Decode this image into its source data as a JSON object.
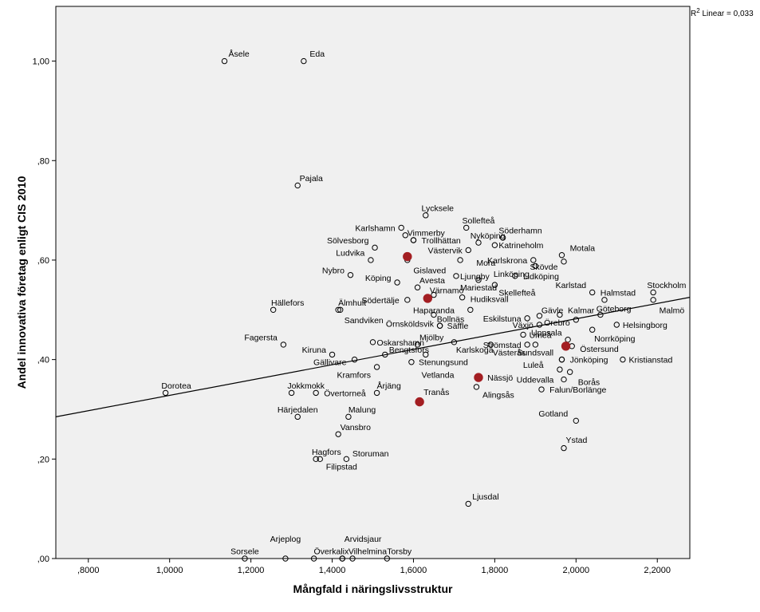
{
  "chart_data": {
    "type": "scatter",
    "xlabel": "Mångfald i näringslivsstruktur",
    "ylabel": "Andel innovativa företag enligt CIS 2010",
    "xlim": [
      0.72,
      2.28
    ],
    "ylim": [
      0.0,
      1.11
    ],
    "x_ticks": [
      0.8,
      1.0,
      1.2,
      1.4,
      1.6,
      1.8,
      2.0,
      2.2
    ],
    "x_tick_labels": [
      ",8000",
      "1,0000",
      "1,2000",
      "1,4000",
      "1,6000",
      "1,8000",
      "2,0000",
      "2,2000"
    ],
    "y_ticks": [
      0.0,
      0.2,
      0.4,
      0.6,
      0.8,
      1.0
    ],
    "y_tick_labels": [
      ",00",
      ",20",
      ",40",
      ",60",
      ",80",
      "1,00"
    ],
    "fit_line": {
      "label_prefix": "R",
      "label_sup": "2",
      "label_suffix": " Linear = 0,033",
      "intercept": 0.174,
      "slope": 0.154
    },
    "colors": {
      "plot_bg": "#f0f0f0",
      "marker_edge": "#000000",
      "highlight": "#a31e22",
      "fit_line": "#000000"
    },
    "points": [
      {
        "name": "Åsele",
        "x": 1.135,
        "y": 1.0,
        "lx": 0.0,
        "ly": 0.015,
        "anchor": "start"
      },
      {
        "name": "Eda",
        "x": 1.33,
        "y": 1.0,
        "lx": 0.005,
        "ly": 0.015,
        "anchor": "start"
      },
      {
        "name": "Pajala",
        "x": 1.315,
        "y": 0.75,
        "lx": -0.005,
        "ly": 0.015,
        "anchor": "start"
      },
      {
        "name": "Lycksele",
        "x": 1.63,
        "y": 0.69,
        "lx": -0.02,
        "ly": 0.015,
        "anchor": "start"
      },
      {
        "name": "Sollefteå",
        "x": 1.73,
        "y": 0.665,
        "lx": -0.02,
        "ly": 0.015,
        "anchor": "start"
      },
      {
        "name": "Karlshamn",
        "x": 1.57,
        "y": 0.665,
        "lx": -0.005,
        "ly": 0.0,
        "anchor": "end"
      },
      {
        "name": "Vimmerby",
        "x": 1.58,
        "y": 0.65,
        "lx": -0.005,
        "ly": 0.005,
        "anchor": "start"
      },
      {
        "name": "Söderhamn",
        "x": 1.82,
        "y": 0.645,
        "lx": -0.02,
        "ly": 0.015,
        "anchor": "start"
      },
      {
        "name": "Trollhättan",
        "x": 1.6,
        "y": 0.64,
        "lx": 0.01,
        "ly": 0.0,
        "anchor": "start"
      },
      {
        "name": "Nyköping",
        "x": 1.76,
        "y": 0.635,
        "lx": -0.03,
        "ly": 0.015,
        "anchor": "start"
      },
      {
        "name": "Sölvesborg",
        "x": 1.505,
        "y": 0.625,
        "lx": -0.005,
        "ly": 0.015,
        "anchor": "end"
      },
      {
        "name": "Katrineholm",
        "x": 1.8,
        "y": 0.63,
        "lx": 0.0,
        "ly": 0.0,
        "anchor": "start"
      },
      {
        "name": "Motala",
        "x": 1.965,
        "y": 0.61,
        "lx": 0.01,
        "ly": 0.015,
        "anchor": "start"
      },
      {
        "name": "Västervik",
        "x": 1.735,
        "y": 0.62,
        "lx": -0.005,
        "ly": 0.0,
        "anchor": "end"
      },
      {
        "name": "Ludvika",
        "x": 1.495,
        "y": 0.6,
        "lx": -0.005,
        "ly": 0.015,
        "anchor": "end"
      },
      {
        "name": "Karlskrona",
        "x": 1.895,
        "y": 0.6,
        "lx": -0.005,
        "ly": 0.0,
        "anchor": "end"
      },
      {
        "name": "Mora",
        "x": 1.715,
        "y": 0.6,
        "lx": 0.03,
        "ly": -0.005,
        "anchor": "start"
      },
      {
        "name": "Skövde",
        "x": 1.97,
        "y": 0.597,
        "lx": -0.005,
        "ly": -0.01,
        "anchor": "end"
      },
      {
        "name": "Gislaved",
        "x": 1.585,
        "y": 0.6,
        "lx": 0.005,
        "ly": -0.02,
        "anchor": "start"
      },
      {
        "name": "Linköping",
        "x": 1.9,
        "y": 0.588,
        "lx": -0.005,
        "ly": -0.015,
        "anchor": "end"
      },
      {
        "name": "Nybro",
        "x": 1.445,
        "y": 0.57,
        "lx": -0.005,
        "ly": 0.01,
        "anchor": "end"
      },
      {
        "name": "Ljungby",
        "x": 1.705,
        "y": 0.568,
        "lx": 0.0,
        "ly": 0.0,
        "anchor": "start"
      },
      {
        "name": "Lidköping",
        "x": 1.85,
        "y": 0.568,
        "lx": 0.01,
        "ly": 0.0,
        "anchor": "start"
      },
      {
        "name": "Köping",
        "x": 1.56,
        "y": 0.555,
        "lx": -0.005,
        "ly": 0.01,
        "anchor": "end"
      },
      {
        "name": "Avesta",
        "x": 1.61,
        "y": 0.545,
        "lx": -0.005,
        "ly": 0.015,
        "anchor": "start"
      },
      {
        "name": "Mariestad",
        "x": 1.76,
        "y": 0.56,
        "lx": 0.0,
        "ly": -0.015,
        "anchor": "middle"
      },
      {
        "name": "Skellefteå",
        "x": 1.8,
        "y": 0.55,
        "lx": 0.0,
        "ly": -0.015,
        "anchor": "start"
      },
      {
        "name": "Värnamo",
        "x": 1.65,
        "y": 0.53,
        "lx": -0.02,
        "ly": 0.01,
        "anchor": "start"
      },
      {
        "name": "Karlstad",
        "x": 2.04,
        "y": 0.535,
        "lx": -0.005,
        "ly": 0.015,
        "anchor": "end"
      },
      {
        "name": "Halmstad",
        "x": 2.07,
        "y": 0.52,
        "lx": -0.02,
        "ly": 0.015,
        "anchor": "start"
      },
      {
        "name": "Stockholm",
        "x": 2.19,
        "y": 0.535,
        "lx": -0.025,
        "ly": 0.015,
        "anchor": "start"
      },
      {
        "name": "Södertälje",
        "x": 1.585,
        "y": 0.52,
        "lx": -0.01,
        "ly": 0.0,
        "anchor": "end"
      },
      {
        "name": "Hudiksvall",
        "x": 1.72,
        "y": 0.525,
        "lx": 0.01,
        "ly": -0.003,
        "anchor": "start"
      },
      {
        "name": "Hällefors",
        "x": 1.255,
        "y": 0.5,
        "lx": -0.015,
        "ly": 0.015,
        "anchor": "start"
      },
      {
        "name": "Älmhult",
        "x": 1.415,
        "y": 0.5,
        "lx": -0.01,
        "ly": 0.015,
        "anchor": "start"
      },
      {
        "name": "Haparanda",
        "x": 1.65,
        "y": 0.49,
        "lx": 0.0,
        "ly": 0.01,
        "anchor": "middle"
      },
      {
        "name": "Kalmar",
        "x": 1.96,
        "y": 0.49,
        "lx": 0.01,
        "ly": 0.01,
        "anchor": "start"
      },
      {
        "name": "Göteborg",
        "x": 2.06,
        "y": 0.49,
        "lx": -0.02,
        "ly": 0.013,
        "anchor": "start"
      },
      {
        "name": "Malmö",
        "x": 2.19,
        "y": 0.52,
        "lx": 0.005,
        "ly": -0.02,
        "anchor": "start"
      },
      {
        "name": "Gävle",
        "x": 1.91,
        "y": 0.488,
        "lx": -0.005,
        "ly": 0.012,
        "anchor": "start"
      },
      {
        "name": "Eskilstuna",
        "x": 1.88,
        "y": 0.483,
        "lx": -0.005,
        "ly": 0.0,
        "anchor": "end"
      },
      {
        "name": "Sandviken",
        "x": 1.42,
        "y": 0.5,
        "lx": 0.0,
        "ly": -0.02,
        "anchor": "start"
      },
      {
        "name": "Bollnäs",
        "x": 1.74,
        "y": 0.5,
        "lx": -0.005,
        "ly": -0.018,
        "anchor": "end"
      },
      {
        "name": "Örebro",
        "x": 2.0,
        "y": 0.48,
        "lx": -0.005,
        "ly": -0.005,
        "anchor": "end"
      },
      {
        "name": "Helsingborg",
        "x": 2.1,
        "y": 0.47,
        "lx": 0.005,
        "ly": 0.0,
        "anchor": "start"
      },
      {
        "name": "Örnsköldsvik",
        "x": 1.665,
        "y": 0.468,
        "lx": -0.005,
        "ly": 0.004,
        "anchor": "end"
      },
      {
        "name": "Säffle",
        "x": 1.665,
        "y": 0.468,
        "lx": 0.008,
        "ly": 0.0,
        "anchor": "start"
      },
      {
        "name": "Växjö",
        "x": 1.91,
        "y": 0.47,
        "lx": -0.005,
        "ly": 0.0,
        "anchor": "end"
      },
      {
        "name": "Umeå",
        "x": 1.87,
        "y": 0.45,
        "lx": 0.005,
        "ly": 0.0,
        "anchor": "start"
      },
      {
        "name": "Uppsala",
        "x": 1.98,
        "y": 0.44,
        "lx": -0.005,
        "ly": 0.015,
        "anchor": "end"
      },
      {
        "name": "Norrköping",
        "x": 2.04,
        "y": 0.46,
        "lx": -0.005,
        "ly": -0.017,
        "anchor": "start"
      },
      {
        "name": "Fagersta",
        "x": 1.28,
        "y": 0.43,
        "lx": -0.005,
        "ly": 0.015,
        "anchor": "end"
      },
      {
        "name": "Oskarshamn",
        "x": 1.5,
        "y": 0.435,
        "lx": 0.0,
        "ly": 0.0,
        "anchor": "start"
      },
      {
        "name": "Mjölby",
        "x": 1.61,
        "y": 0.43,
        "lx": -0.005,
        "ly": 0.015,
        "anchor": "start"
      },
      {
        "name": "Strömstad",
        "x": 1.88,
        "y": 0.43,
        "lx": -0.005,
        "ly": 0.0,
        "anchor": "end"
      },
      {
        "name": "Östersund",
        "x": 1.99,
        "y": 0.427,
        "lx": 0.01,
        "ly": -0.005,
        "anchor": "start"
      },
      {
        "name": "Kiruna",
        "x": 1.4,
        "y": 0.41,
        "lx": -0.005,
        "ly": 0.01,
        "anchor": "end"
      },
      {
        "name": "Bengtsfors",
        "x": 1.53,
        "y": 0.41,
        "lx": 0.0,
        "ly": 0.01,
        "anchor": "start"
      },
      {
        "name": "Karlskoga",
        "x": 1.7,
        "y": 0.435,
        "lx": -0.005,
        "ly": -0.015,
        "anchor": "start"
      },
      {
        "name": "Västerås",
        "x": 1.79,
        "y": 0.43,
        "lx": -0.005,
        "ly": -0.015,
        "anchor": "start"
      },
      {
        "name": "Sundsvall",
        "x": 1.9,
        "y": 0.43,
        "lx": 0.0,
        "ly": -0.015,
        "anchor": "middle"
      },
      {
        "name": "Jönköping",
        "x": 1.965,
        "y": 0.4,
        "lx": 0.01,
        "ly": 0.0,
        "anchor": "start"
      },
      {
        "name": "Kristianstad",
        "x": 2.115,
        "y": 0.4,
        "lx": 0.005,
        "ly": 0.0,
        "anchor": "start"
      },
      {
        "name": "Gällivare",
        "x": 1.455,
        "y": 0.4,
        "lx": -0.01,
        "ly": -0.005,
        "anchor": "end"
      },
      {
        "name": "Stenungsund",
        "x": 1.595,
        "y": 0.395,
        "lx": 0.008,
        "ly": 0.0,
        "anchor": "start"
      },
      {
        "name": "Kramfors",
        "x": 1.51,
        "y": 0.385,
        "lx": -0.005,
        "ly": -0.015,
        "anchor": "end"
      },
      {
        "name": "Vetlanda",
        "x": 1.63,
        "y": 0.41,
        "lx": -0.02,
        "ly": -0.04,
        "anchor": "start"
      },
      {
        "name": "Luleå",
        "x": 1.96,
        "y": 0.38,
        "lx": -0.03,
        "ly": 0.01,
        "anchor": "end"
      },
      {
        "name": "Borås",
        "x": 1.985,
        "y": 0.375,
        "lx": 0.01,
        "ly": -0.02,
        "anchor": "start"
      },
      {
        "name": "Uddevalla",
        "x": 1.97,
        "y": 0.36,
        "lx": -0.015,
        "ly": 0.0,
        "anchor": "end"
      },
      {
        "name": "Dorotea",
        "x": 0.99,
        "y": 0.333,
        "lx": -0.02,
        "ly": 0.015,
        "anchor": "start"
      },
      {
        "name": "Jokkmokk",
        "x": 1.3,
        "y": 0.333,
        "lx": -0.02,
        "ly": 0.015,
        "anchor": "start"
      },
      {
        "name": "Övertorneå",
        "x": 1.36,
        "y": 0.333,
        "lx": 0.01,
        "ly": 0.0,
        "anchor": "start"
      },
      {
        "name": "Årjäng",
        "x": 1.51,
        "y": 0.333,
        "lx": -0.01,
        "ly": 0.015,
        "anchor": "start"
      },
      {
        "name": "Alingsås",
        "x": 1.755,
        "y": 0.345,
        "lx": 0.005,
        "ly": -0.015,
        "anchor": "start"
      },
      {
        "name": "Falun/Borlänge",
        "x": 1.915,
        "y": 0.34,
        "lx": 0.01,
        "ly": 0.0,
        "anchor": "start"
      },
      {
        "name": "Härjedalen",
        "x": 1.315,
        "y": 0.285,
        "lx": 0.0,
        "ly": 0.015,
        "anchor": "middle"
      },
      {
        "name": "Malung",
        "x": 1.44,
        "y": 0.285,
        "lx": -0.01,
        "ly": 0.015,
        "anchor": "start"
      },
      {
        "name": "Vansbro",
        "x": 1.415,
        "y": 0.25,
        "lx": -0.005,
        "ly": 0.015,
        "anchor": "start"
      },
      {
        "name": "Gotland",
        "x": 2.0,
        "y": 0.277,
        "lx": -0.01,
        "ly": 0.015,
        "anchor": "end"
      },
      {
        "name": "Ystad",
        "x": 1.97,
        "y": 0.222,
        "lx": -0.005,
        "ly": 0.017,
        "anchor": "start"
      },
      {
        "name": "Hagfors",
        "x": 1.36,
        "y": 0.2,
        "lx": -0.02,
        "ly": 0.015,
        "anchor": "start"
      },
      {
        "name": "Storuman",
        "x": 1.435,
        "y": 0.2,
        "lx": 0.005,
        "ly": 0.012,
        "anchor": "start"
      },
      {
        "name": "Filipstad",
        "x": 1.37,
        "y": 0.2,
        "lx": 0.005,
        "ly": -0.015,
        "anchor": "start"
      },
      {
        "name": "Ljusdal",
        "x": 1.735,
        "y": 0.11,
        "lx": 0.0,
        "ly": 0.015,
        "anchor": "start"
      },
      {
        "name": "Arjeplog",
        "x": 1.285,
        "y": 0.0,
        "lx": 0.0,
        "ly": 0.04,
        "anchor": "middle"
      },
      {
        "name": "Arvidsjaur",
        "x": 1.425,
        "y": 0.0,
        "lx": -0.005,
        "ly": 0.04,
        "anchor": "start"
      },
      {
        "name": "Sorsele",
        "x": 1.185,
        "y": 0.0,
        "lx": 0.0,
        "ly": 0.015,
        "anchor": "middle"
      },
      {
        "name": "Överkalix",
        "x": 1.355,
        "y": 0.0,
        "lx": -0.01,
        "ly": 0.015,
        "anchor": "start"
      },
      {
        "name": "Vilhelmina",
        "x": 1.425,
        "y": 0.0,
        "lx": 0.005,
        "ly": 0.015,
        "anchor": "start"
      },
      {
        "name": "Torsby",
        "x": 1.535,
        "y": 0.0,
        "lx": -0.01,
        "ly": 0.015,
        "anchor": "start"
      },
      {
        "name": "",
        "x": 1.45,
        "y": 0.0,
        "lx": 0,
        "ly": 0,
        "anchor": "start"
      },
      {
        "name": "",
        "x": 1.975,
        "y": 0.425,
        "lx": 0,
        "ly": 0,
        "anchor": "start"
      },
      {
        "name": "",
        "x": 1.6,
        "y": 0.64,
        "lx": 0,
        "ly": 0,
        "anchor": "start"
      },
      {
        "name": "",
        "x": 1.965,
        "y": 0.4,
        "lx": 0,
        "ly": 0,
        "anchor": "start"
      }
    ],
    "highlighted": [
      {
        "name": "",
        "x": 1.585,
        "y": 0.607
      },
      {
        "name": "",
        "x": 1.635,
        "y": 0.523
      },
      {
        "name": "",
        "x": 1.975,
        "y": 0.427
      },
      {
        "name": "Nässjö",
        "x": 1.76,
        "y": 0.364,
        "lx": 0.012,
        "ly": 0.0,
        "anchor": "start"
      },
      {
        "name": "Tranås",
        "x": 1.615,
        "y": 0.315,
        "lx": 0.0,
        "ly": 0.02,
        "anchor": "start"
      }
    ]
  }
}
